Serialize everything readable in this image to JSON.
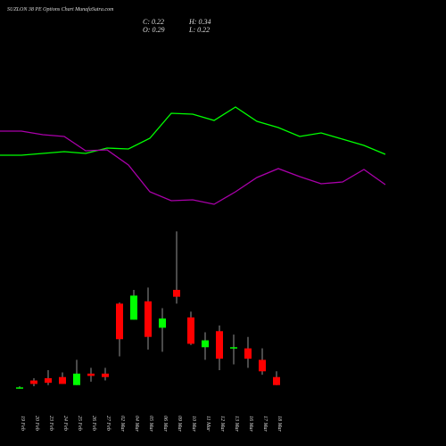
{
  "chart_data": {
    "type": "candlestick",
    "title": "SUZLON 38 PE Options Chart MunafaSutra.com",
    "info": [
      "C: 0.22",
      "H: 0.34",
      "O: 0.29",
      "L: 0.22"
    ],
    "categories": [
      "19 Feb",
      "20 Feb",
      "23 Feb",
      "24 Feb",
      "25 Feb",
      "26 Feb",
      "27 Feb",
      "02 Mar",
      "04 Mar",
      "05 Mar",
      "06 Mar",
      "09 Mar",
      "10 Mar",
      "11 Mar",
      "12 Mar",
      "13 Mar",
      "16 Mar",
      "17 Mar",
      "18 Mar"
    ],
    "open": [
      0.19,
      0.26,
      0.28,
      0.29,
      0.22,
      0.32,
      0.32,
      0.93,
      0.79,
      0.95,
      0.72,
      1.05,
      0.81,
      0.55,
      0.69,
      0.54,
      0.54,
      0.44,
      0.29
    ],
    "high": [
      0.21,
      0.28,
      0.35,
      0.33,
      0.44,
      0.37,
      0.37,
      0.94,
      1.05,
      1.07,
      0.89,
      1.56,
      0.86,
      0.68,
      0.74,
      0.66,
      0.64,
      0.54,
      0.34
    ],
    "low": [
      0.19,
      0.21,
      0.22,
      0.23,
      0.22,
      0.25,
      0.26,
      0.47,
      0.79,
      0.53,
      0.51,
      0.93,
      0.57,
      0.44,
      0.35,
      0.4,
      0.37,
      0.31,
      0.22
    ],
    "close": [
      0.2,
      0.23,
      0.24,
      0.23,
      0.32,
      0.3,
      0.29,
      0.62,
      1.0,
      0.64,
      0.8,
      0.99,
      0.58,
      0.61,
      0.45,
      0.55,
      0.45,
      0.34,
      0.22
    ],
    "up_color": "#00ff00",
    "down_color": "#ff0000",
    "ylim": [
      0,
      1.8
    ],
    "lines": [
      {
        "color": "#00ff00",
        "values": [
          76,
          76,
          78,
          80,
          78,
          84,
          83,
          95,
          123,
          122,
          115,
          130,
          114,
          107,
          97,
          101,
          94,
          87,
          77
        ]
      },
      {
        "color": "#aa00aa",
        "values": [
          103,
          103,
          99,
          97,
          81,
          82,
          65,
          35,
          25,
          26,
          21,
          35,
          51,
          61,
          52,
          44,
          46,
          60,
          43
        ]
      }
    ],
    "y2lim": [
      0,
      150
    ]
  }
}
